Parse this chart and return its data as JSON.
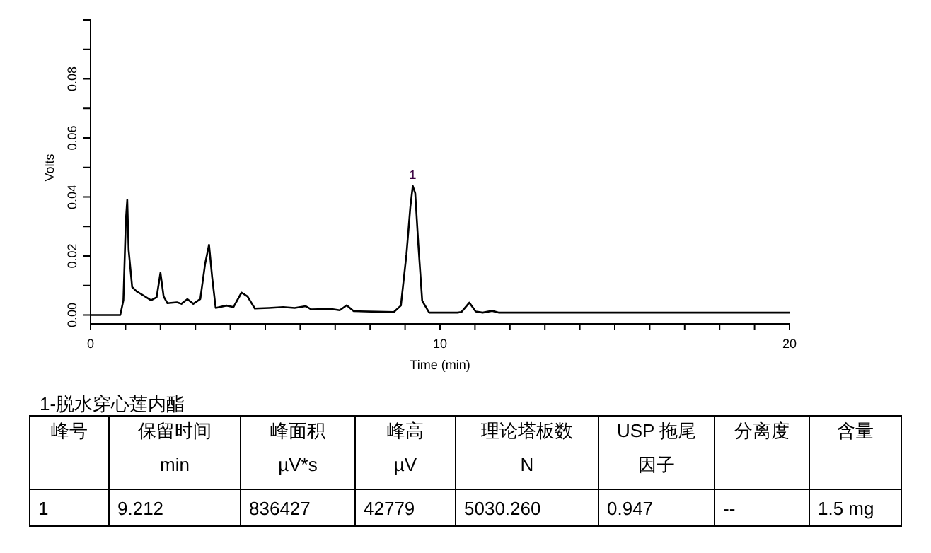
{
  "chart_data": {
    "type": "line",
    "xlabel": "Time (min)",
    "ylabel": "Volts",
    "x": [
      0,
      0.85,
      0.94,
      1.01,
      1.05,
      1.09,
      1.19,
      1.32,
      1.46,
      1.73,
      1.89,
      2.0,
      2.09,
      2.2,
      2.47,
      2.6,
      2.77,
      2.94,
      3.14,
      3.28,
      3.39,
      3.48,
      3.58,
      3.89,
      4.09,
      4.32,
      4.49,
      4.7,
      5.1,
      5.51,
      5.84,
      6.15,
      6.32,
      6.86,
      7.13,
      7.33,
      7.53,
      8.2,
      8.68,
      8.88,
      9.04,
      9.15,
      9.22,
      9.29,
      9.38,
      9.49,
      9.69,
      10.5,
      10.61,
      10.84,
      11.02,
      11.22,
      11.49,
      11.69,
      20
    ],
    "series": [
      {
        "color": "#000000",
        "values": [
          0,
          0,
          0.005,
          0.032,
          0.039,
          0.022,
          0.0095,
          0.008,
          0.007,
          0.005,
          0.006,
          0.0143,
          0.0063,
          0.004,
          0.0043,
          0.0038,
          0.0054,
          0.0038,
          0.0054,
          0.0175,
          0.0238,
          0.0127,
          0.0024,
          0.0032,
          0.0027,
          0.0076,
          0.0063,
          0.0022,
          0.0024,
          0.0027,
          0.0024,
          0.003,
          0.0019,
          0.0021,
          0.0016,
          0.0033,
          0.0013,
          0.0011,
          0.001,
          0.0032,
          0.0206,
          0.0365,
          0.0437,
          0.0413,
          0.0238,
          0.0048,
          0.0008,
          0.0008,
          0.001,
          0.0042,
          0.0012,
          0.0008,
          0.0014,
          0.0008,
          0.0008
        ]
      }
    ],
    "xlim": [
      0,
      20
    ],
    "ylim": [
      -0.003,
      0.1
    ],
    "xticks": [
      0,
      {
        "value": 1,
        "label": null
      },
      {
        "value": 2,
        "label": null
      },
      {
        "value": 3,
        "label": null
      },
      {
        "value": 4,
        "label": null
      },
      {
        "value": 5,
        "label": null
      },
      {
        "value": 6,
        "label": null
      },
      {
        "value": 7,
        "label": null
      },
      {
        "value": 8,
        "label": null
      },
      {
        "value": 9,
        "label": null
      },
      10,
      {
        "value": 11,
        "label": null
      },
      {
        "value": 12,
        "label": null
      },
      {
        "value": 13,
        "label": null
      },
      {
        "value": 14,
        "label": null
      },
      {
        "value": 15,
        "label": null
      },
      {
        "value": 16,
        "label": null
      },
      {
        "value": 17,
        "label": null
      },
      {
        "value": 18,
        "label": null
      },
      {
        "value": 19,
        "label": null
      },
      20
    ],
    "yticks": [
      {
        "value": 0,
        "label": "0.00"
      },
      {
        "value": 0.01,
        "label": null
      },
      {
        "value": 0.02,
        "label": "0.02"
      },
      {
        "value": 0.03,
        "label": null
      },
      {
        "value": 0.04,
        "label": "0.04"
      },
      {
        "value": 0.05,
        "label": null
      },
      {
        "value": 0.06,
        "label": "0.06"
      },
      {
        "value": 0.07,
        "label": null
      },
      {
        "value": 0.08,
        "label": "0.08"
      },
      {
        "value": 0.09,
        "label": null
      },
      {
        "value": 0.1,
        "label": null
      }
    ],
    "annotations": [
      {
        "text": "1",
        "x": 9.22,
        "y": 0.0437
      },
      "1-脱水穿心莲内酯",
      "峰号",
      "保留时间\nmin",
      "峰面积\nµV*s",
      "峰高\nµV",
      "理论塔板数\nN",
      "USP 拖尾因子",
      "分离度",
      "含量",
      "1",
      "9.212",
      "836427",
      "42779",
      "5030.260",
      "0.947",
      "--",
      "1.5 mg"
    ]
  }
}
